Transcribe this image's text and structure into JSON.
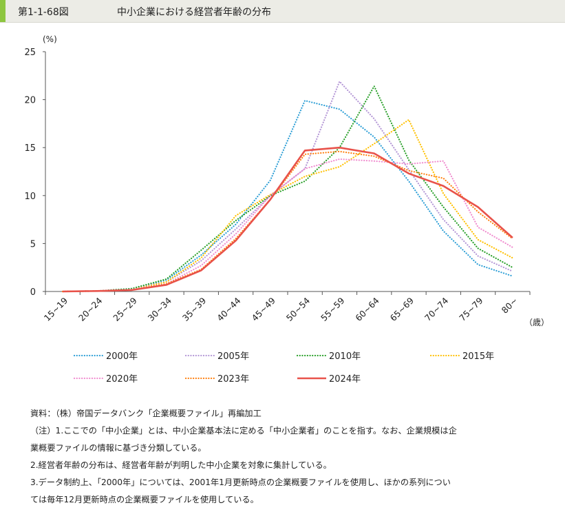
{
  "header": {
    "figure_label": "第1-1-68図",
    "title": "中小企業における経営者年齢の分布"
  },
  "chart_data": {
    "type": "line",
    "ylabel": "(%)",
    "xlabel": "（歳）",
    "ylim": [
      0,
      25
    ],
    "yticks": [
      0,
      5,
      10,
      15,
      20,
      25
    ],
    "categories": [
      "15~19",
      "20~24",
      "25~29",
      "30~34",
      "35~39",
      "40~44",
      "45~49",
      "50~54",
      "55~59",
      "60~64",
      "65~69",
      "70~74",
      "75~79",
      "80~"
    ],
    "grid": false,
    "legend_position": "bottom",
    "series": [
      {
        "name": "2000年",
        "color": "#2e9fd6",
        "style": "dotted",
        "values": [
          0.0,
          0.05,
          0.3,
          1.2,
          3.8,
          7.0,
          11.6,
          19.9,
          19.0,
          16.1,
          11.5,
          6.3,
          2.8,
          1.6
        ]
      },
      {
        "name": "2005年",
        "color": "#b497d6",
        "style": "dotted",
        "values": [
          0.0,
          0.05,
          0.3,
          1.0,
          3.2,
          6.5,
          10.0,
          12.8,
          21.9,
          18.0,
          12.7,
          7.5,
          3.7,
          2.1
        ]
      },
      {
        "name": "2010年",
        "color": "#2aa02a",
        "style": "dotted",
        "values": [
          0.0,
          0.05,
          0.3,
          1.3,
          4.3,
          7.4,
          10.0,
          11.5,
          15.0,
          21.4,
          13.7,
          8.8,
          4.5,
          2.5
        ]
      },
      {
        "name": "2015年",
        "color": "#ffc000",
        "style": "dotted",
        "values": [
          0.0,
          0.05,
          0.2,
          1.0,
          3.5,
          7.9,
          10.1,
          12.0,
          13.0,
          15.4,
          17.9,
          10.2,
          5.4,
          3.5
        ]
      },
      {
        "name": "2020年",
        "color": "#f08ccf",
        "style": "dotted",
        "values": [
          0.0,
          0.05,
          0.2,
          0.8,
          2.7,
          6.0,
          10.0,
          12.8,
          13.8,
          13.6,
          13.3,
          13.6,
          6.7,
          4.6
        ]
      },
      {
        "name": "2023年",
        "color": "#ff7f0e",
        "style": "dotted",
        "values": [
          0.0,
          0.05,
          0.15,
          0.8,
          2.3,
          5.5,
          9.6,
          14.3,
          14.6,
          14.1,
          12.6,
          11.8,
          8.3,
          5.5
        ]
      },
      {
        "name": "2024年",
        "color": "#e8524a",
        "style": "solid",
        "values": [
          0.0,
          0.05,
          0.15,
          0.7,
          2.2,
          5.3,
          9.6,
          14.7,
          15.0,
          14.4,
          12.3,
          11.0,
          8.8,
          5.6
        ]
      }
    ]
  },
  "notes": [
    "資料：（株）帝国データバンク「企業概要ファイル」再編加工",
    "（注）1.ここでの「中小企業」とは、中小企業基本法に定める「中小企業者」のことを指す。なお、企業規模は企",
    "業概要ファイルの情報に基づき分類している。",
    "2.経営者年齢の分布は、経営者年齢が判明した中小企業を対象に集計している。",
    "3.データ制約上、「2000年」については、2001年1月更新時点の企業概要ファイルを使用し、ほかの系列につい",
    "ては毎年12月更新時点の企業概要ファイルを使用している。"
  ]
}
